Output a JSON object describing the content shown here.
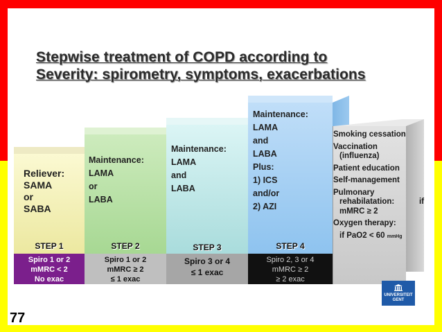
{
  "title": {
    "line1": "Stepwise treatment of COPD according to",
    "line2": "Severity: spirometry, symptoms, exacerbations"
  },
  "steps": [
    {
      "label": "STEP 1",
      "body": [
        "Reliever:",
        "SAMA",
        "or",
        "SABA"
      ],
      "criteria": [
        "Spiro 1 or 2",
        "mMRC < 2",
        "No exac"
      ]
    },
    {
      "label": "STEP 2",
      "body": [
        "Maintenance:",
        "LAMA",
        "or",
        "LABA"
      ],
      "criteria": [
        "Spiro 1 or 2",
        "mMRC ≥ 2",
        "≤ 1 exac"
      ]
    },
    {
      "label": "STEP 3",
      "body": [
        "Maintenance:",
        "LAMA",
        "and",
        "LABA"
      ],
      "criteria": [
        "Spiro 3 or 4",
        "≤ 1 exac"
      ]
    },
    {
      "label": "STEP 4",
      "body": [
        "Maintenance:",
        "LAMA",
        "and",
        "LABA",
        "Plus:",
        "1)  ICS",
        "and/or",
        "2) AZI"
      ],
      "criteria": [
        "Spiro 2, 3 or 4",
        "mMRC ≥ 2",
        "≥ 2 exac"
      ]
    }
  ],
  "general_measures": {
    "smoking": "Smoking cessation",
    "vaccination_1": "Vaccination",
    "vaccination_2": "(influenza)",
    "education": "Patient education",
    "self_management": "Self-management",
    "rehab_1": "Pulmonary",
    "rehab_2": "rehabilatation:",
    "rehab_if": "if",
    "rehab_3": "mMRC ≥ 2",
    "oxygen_1": "Oxygen therapy:",
    "oxygen_2": "if PaO2 < 60",
    "oxygen_unit": "mmHg"
  },
  "logo": {
    "line1": "UNIVERSITEIT",
    "line2": "GENT"
  },
  "page_number": "77",
  "colors": {
    "frame_top": "#ff0000",
    "frame_bottom": "#ffff00",
    "step1": "#f6f3b4",
    "step2": "#b9e3a8",
    "step3": "#c4ecec",
    "step4": "#a6d2f5",
    "measures": "#d3d3d3",
    "crit1": "#7b1f8c",
    "crit2": "#bfbfbf",
    "crit3": "#a6a6a6",
    "crit4": "#111111"
  }
}
